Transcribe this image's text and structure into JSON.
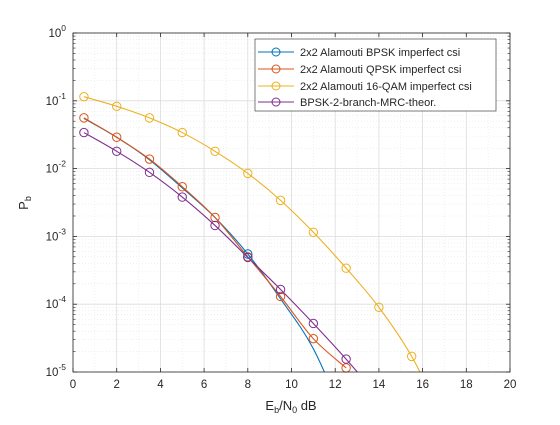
{
  "chart_data": {
    "type": "line",
    "xlabel": {
      "base": "E",
      "sub1": "b",
      "mid": "/N",
      "sub2": "0",
      "tail": " dB"
    },
    "ylabel": {
      "base": "P",
      "sub": "b"
    },
    "xlim": [
      0,
      20
    ],
    "ylim": [
      1e-05,
      1
    ],
    "yscale": "log",
    "grid": true,
    "minor_grid": true,
    "x_ticks": [
      0,
      2,
      4,
      6,
      8,
      10,
      12,
      14,
      16,
      18,
      20
    ],
    "x_tick_labels": [
      "0",
      "2",
      "4",
      "6",
      "8",
      "10",
      "12",
      "14",
      "16",
      "18",
      "20"
    ],
    "y_ticks": [
      {
        "value": 1,
        "base": "10",
        "exp": "0"
      },
      {
        "value": 0.1,
        "base": "10",
        "exp": "-1"
      },
      {
        "value": 0.01,
        "base": "10",
        "exp": "-2"
      },
      {
        "value": 0.001,
        "base": "10",
        "exp": "-3"
      },
      {
        "value": 0.0001,
        "base": "10",
        "exp": "-4"
      },
      {
        "value": 1e-05,
        "base": "10",
        "exp": "-5"
      }
    ],
    "legend_position": "top-right",
    "series": [
      {
        "name": "2x2 Alamouti BPSK imperfect csi",
        "color": "#0072BD",
        "marker": "circle",
        "x": [
          0.5,
          2,
          3.5,
          5,
          6.5,
          8,
          9.5,
          11,
          12.5
        ],
        "y": [
          0.055,
          0.029,
          0.0135,
          0.0052,
          0.0019,
          0.00055,
          0.00012,
          2.2e-05,
          1.8e-06
        ],
        "marker_x": [
          8
        ],
        "marker_y": [
          0.00055
        ]
      },
      {
        "name": "2x2 Alamouti QPSK imperfect csi",
        "color": "#D95319",
        "marker": "circle",
        "x": [
          0.5,
          2,
          3.5,
          5,
          6.5,
          8,
          9.5,
          11,
          12.5
        ],
        "y": [
          0.056,
          0.029,
          0.0138,
          0.0054,
          0.0019,
          0.0005,
          0.00013,
          3.1e-05,
          1.15e-05
        ],
        "marker_x": [
          0.5,
          2,
          3.5,
          5,
          6.5,
          8,
          9.5,
          11,
          12.5
        ],
        "marker_y": [
          0.056,
          0.029,
          0.0138,
          0.0054,
          0.0019,
          0.0005,
          0.00013,
          3.1e-05,
          1.15e-05
        ]
      },
      {
        "name": "2x2 Alamouti 16-QAM imperfect csi",
        "color": "#EDB120",
        "marker": "circle",
        "x": [
          0.5,
          2,
          3.5,
          5,
          6.5,
          8,
          9.5,
          11,
          12.5,
          14,
          15.5,
          17
        ],
        "y": [
          0.115,
          0.083,
          0.056,
          0.034,
          0.018,
          0.0085,
          0.0034,
          0.00115,
          0.00034,
          9e-05,
          1.7e-05,
          1.8e-06
        ],
        "marker_x": [
          0.5,
          2,
          3.5,
          5,
          6.5,
          8,
          9.5,
          11,
          12.5,
          14,
          15.5
        ],
        "marker_y": [
          0.115,
          0.083,
          0.056,
          0.034,
          0.018,
          0.0085,
          0.0034,
          0.00115,
          0.00034,
          9e-05,
          1.7e-05
        ]
      },
      {
        "name": "BPSK-2-branch-MRC-theor.",
        "color": "#7E2F8E",
        "marker": "circle",
        "x": [
          0.5,
          2,
          3.5,
          5,
          6.5,
          8,
          9.5,
          11,
          12.5,
          14
        ],
        "y": [
          0.034,
          0.018,
          0.0088,
          0.0038,
          0.00145,
          0.00049,
          0.000165,
          5.2e-05,
          1.55e-05,
          4.2e-06
        ],
        "marker_x": [
          0.5,
          2,
          3.5,
          5,
          6.5,
          8,
          9.5,
          11,
          12.5
        ],
        "marker_y": [
          0.034,
          0.018,
          0.0088,
          0.0038,
          0.00145,
          0.00049,
          0.000165,
          5.2e-05,
          1.55e-05
        ]
      }
    ]
  }
}
